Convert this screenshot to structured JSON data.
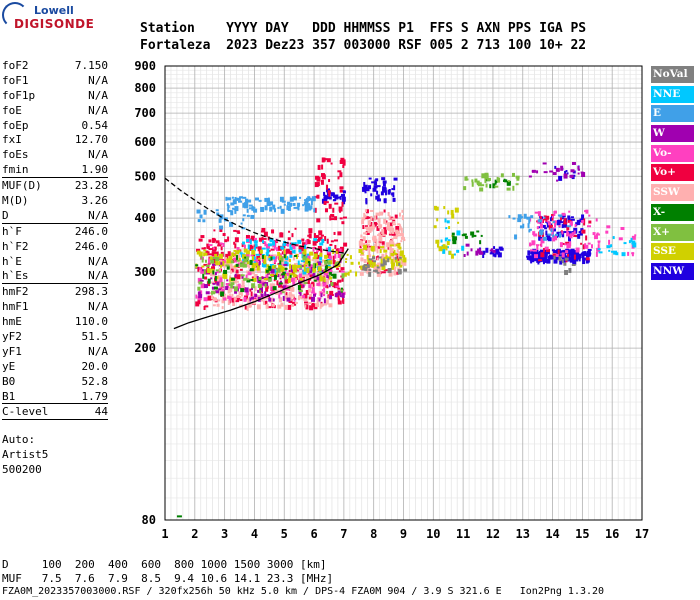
{
  "logo": {
    "line1": "Lowell",
    "line2": "DIGISONDE"
  },
  "header": {
    "row1": "Station    YYYY DAY   DDD HHMMSS P1  FFS S AXN PPS IGA PS",
    "row2": "Fortaleza  2023 Dez23 357 003000 RSF 005 2 713 100 10+ 22"
  },
  "params": [
    {
      "name": "foF2",
      "value": "7.150"
    },
    {
      "name": "foF1",
      "value": "N/A"
    },
    {
      "name": "foF1p",
      "value": "N/A"
    },
    {
      "name": "foE",
      "value": "N/A"
    },
    {
      "name": "foEp",
      "value": "0.54"
    },
    {
      "name": "fxI",
      "value": "12.70"
    },
    {
      "name": "foEs",
      "value": "N/A"
    },
    {
      "name": "fmin",
      "value": "1.90"
    },
    {
      "name": "MUF(D)",
      "value": "23.28",
      "sep": true
    },
    {
      "name": "M(D)",
      "value": "3.26"
    },
    {
      "name": "D",
      "value": "N/A"
    },
    {
      "name": "h`F",
      "value": "246.0",
      "sep": true
    },
    {
      "name": "h`F2",
      "value": "246.0"
    },
    {
      "name": "h`E",
      "value": "N/A"
    },
    {
      "name": "h`Es",
      "value": "N/A"
    },
    {
      "name": "hmF2",
      "value": "298.3",
      "sep": true
    },
    {
      "name": "hmF1",
      "value": "N/A"
    },
    {
      "name": "hmE",
      "value": "110.0"
    },
    {
      "name": "yF2",
      "value": "51.5"
    },
    {
      "name": "yF1",
      "value": "N/A"
    },
    {
      "name": "yE",
      "value": "20.0"
    },
    {
      "name": "B0",
      "value": "52.8"
    },
    {
      "name": "B1",
      "value": "1.79"
    },
    {
      "name": "C-level",
      "value": "44",
      "sep": true
    }
  ],
  "autoscale": {
    "line1": "Auto:",
    "line2": "Artist5",
    "line3": "500200"
  },
  "legend": [
    {
      "label": "NoVal",
      "color": "#808080"
    },
    {
      "label": "NNE",
      "color": "#00c8ff"
    },
    {
      "label": "E",
      "color": "#40a0e8"
    },
    {
      "label": "W",
      "color": "#a000b0"
    },
    {
      "label": "Vo-",
      "color": "#ff40c0"
    },
    {
      "label": "Vo+",
      "color": "#f00040"
    },
    {
      "label": "SSW",
      "color": "#ffb0b0"
    },
    {
      "label": "X-",
      "color": "#008000"
    },
    {
      "label": "X+",
      "color": "#80c040"
    },
    {
      "label": "SSE",
      "color": "#d0d000"
    },
    {
      "label": "NNW",
      "color": "#2000e0"
    }
  ],
  "footer": {
    "d_row": "D     100  200  400  600  800 1000 1500 3000 [km]",
    "muf_row": "MUF   7.5  7.6  7.9  8.5  9.4 10.6 14.1 23.3 [MHz]",
    "file_row": "FZA0M_2023357003000.RSF / 320fx256h 50 kHz 5.0 km / DPS-4 FZA0M 904 / 3.9 S 321.6 E   Ion2Png 1.3.20"
  },
  "chart_data": {
    "type": "scatter",
    "xlim": [
      1,
      17
    ],
    "ylim": [
      80,
      900
    ],
    "x_ticks": [
      1,
      2,
      3,
      4,
      5,
      6,
      7,
      8,
      9,
      10,
      11,
      12,
      13,
      14,
      15,
      16,
      17
    ],
    "y_ticks": [
      80,
      200,
      300,
      400,
      500,
      600,
      700,
      800,
      900
    ],
    "y_scale": "log",
    "grid": true,
    "clusters": [
      {
        "color": "#2000e0",
        "x": [
          13.1,
          15.2
        ],
        "y": [
          320,
          340
        ],
        "n": 160
      },
      {
        "color": "#2000e0",
        "x": [
          13.5,
          15.0
        ],
        "y": [
          360,
          410
        ],
        "n": 70
      },
      {
        "color": "#2000e0",
        "x": [
          7.6,
          8.7
        ],
        "y": [
          440,
          500
        ],
        "n": 40
      },
      {
        "color": "#2000e0",
        "x": [
          6.2,
          7.0
        ],
        "y": [
          440,
          470
        ],
        "n": 25
      },
      {
        "color": "#2000e0",
        "x": [
          11.5,
          12.3
        ],
        "y": [
          330,
          345
        ],
        "n": 18
      },
      {
        "color": "#2000e0",
        "x": [
          14.0,
          15.0
        ],
        "y": [
          500,
          530
        ],
        "n": 10
      },
      {
        "color": "#f00040",
        "x": [
          2.0,
          7.0
        ],
        "y": [
          250,
          380
        ],
        "n": 320
      },
      {
        "color": "#f00040",
        "x": [
          6.0,
          7.0
        ],
        "y": [
          380,
          560
        ],
        "n": 50
      },
      {
        "color": "#f00040",
        "x": [
          7.5,
          8.8
        ],
        "y": [
          300,
          420
        ],
        "n": 60
      },
      {
        "color": "#f00040",
        "x": [
          13.4,
          15.3
        ],
        "y": [
          320,
          410
        ],
        "n": 40
      },
      {
        "color": "#ffb0b0",
        "x": [
          2.5,
          6.5
        ],
        "y": [
          250,
          330
        ],
        "n": 260
      },
      {
        "color": "#ffb0b0",
        "x": [
          7.5,
          9.0
        ],
        "y": [
          300,
          420
        ],
        "n": 150
      },
      {
        "color": "#ff40c0",
        "x": [
          2.0,
          7.0
        ],
        "y": [
          260,
          360
        ],
        "n": 140
      },
      {
        "color": "#ff40c0",
        "x": [
          13.2,
          15.5
        ],
        "y": [
          330,
          420
        ],
        "n": 70
      },
      {
        "color": "#ff40c0",
        "x": [
          15.5,
          16.9
        ],
        "y": [
          330,
          390
        ],
        "n": 14
      },
      {
        "color": "#40a0e8",
        "x": [
          3.0,
          6.0
        ],
        "y": [
          420,
          450
        ],
        "n": 80
      },
      {
        "color": "#40a0e8",
        "x": [
          12.5,
          14.5
        ],
        "y": [
          360,
          410
        ],
        "n": 30
      },
      {
        "color": "#40a0e8",
        "x": [
          2.0,
          4.0
        ],
        "y": [
          380,
          420
        ],
        "n": 20
      },
      {
        "color": "#00c8ff",
        "x": [
          3.5,
          6.5
        ],
        "y": [
          300,
          360
        ],
        "n": 80
      },
      {
        "color": "#00c8ff",
        "x": [
          10.2,
          11.0
        ],
        "y": [
          330,
          400
        ],
        "n": 15
      },
      {
        "color": "#00c8ff",
        "x": [
          15.5,
          16.8
        ],
        "y": [
          330,
          370
        ],
        "n": 15
      },
      {
        "color": "#a000b0",
        "x": [
          2.0,
          7.0
        ],
        "y": [
          260,
          320
        ],
        "n": 90
      },
      {
        "color": "#a000b0",
        "x": [
          13.0,
          15.0
        ],
        "y": [
          490,
          540
        ],
        "n": 20
      },
      {
        "color": "#a000b0",
        "x": [
          11.0,
          12.0
        ],
        "y": [
          330,
          350
        ],
        "n": 12
      },
      {
        "color": "#d0d000",
        "x": [
          2.0,
          7.5
        ],
        "y": [
          290,
          340
        ],
        "n": 130
      },
      {
        "color": "#d0d000",
        "x": [
          7.5,
          9.0
        ],
        "y": [
          310,
          350
        ],
        "n": 50
      },
      {
        "color": "#d0d000",
        "x": [
          10.0,
          10.8
        ],
        "y": [
          330,
          440
        ],
        "n": 20
      },
      {
        "color": "#008000",
        "x": [
          2.0,
          7.0
        ],
        "y": [
          270,
          330
        ],
        "n": 50
      },
      {
        "color": "#008000",
        "x": [
          10.6,
          11.6
        ],
        "y": [
          355,
          375
        ],
        "n": 14
      },
      {
        "color": "#008000",
        "x": [
          11.5,
          12.5
        ],
        "y": [
          470,
          495
        ],
        "n": 10
      },
      {
        "color": "#80c040",
        "x": [
          2.0,
          7.0
        ],
        "y": [
          270,
          330
        ],
        "n": 60
      },
      {
        "color": "#80c040",
        "x": [
          11.0,
          12.8
        ],
        "y": [
          470,
          510
        ],
        "n": 30
      },
      {
        "color": "#808080",
        "x": [
          7.5,
          9.0
        ],
        "y": [
          300,
          330
        ],
        "n": 25
      },
      {
        "color": "#808080",
        "x": [
          14.0,
          14.8
        ],
        "y": [
          300,
          330
        ],
        "n": 8
      }
    ],
    "curves": [
      {
        "style": "solid",
        "color": "#000000",
        "x": [
          1.3,
          1.8,
          2.5,
          3.2,
          4.0,
          4.8,
          5.5,
          6.2,
          6.8,
          7.15
        ],
        "y": [
          222,
          229,
          237,
          245,
          256,
          270,
          283,
          296,
          312,
          340
        ]
      },
      {
        "style": "dashed",
        "color": "#000000",
        "x": [
          1.0,
          1.5,
          2.0,
          2.5,
          3.0,
          3.5,
          4.0,
          4.5,
          5.0,
          5.5,
          6.0,
          6.5,
          7.0
        ],
        "y": [
          495,
          465,
          440,
          418,
          398,
          383,
          370,
          360,
          352,
          345,
          340,
          336,
          332
        ]
      }
    ]
  }
}
